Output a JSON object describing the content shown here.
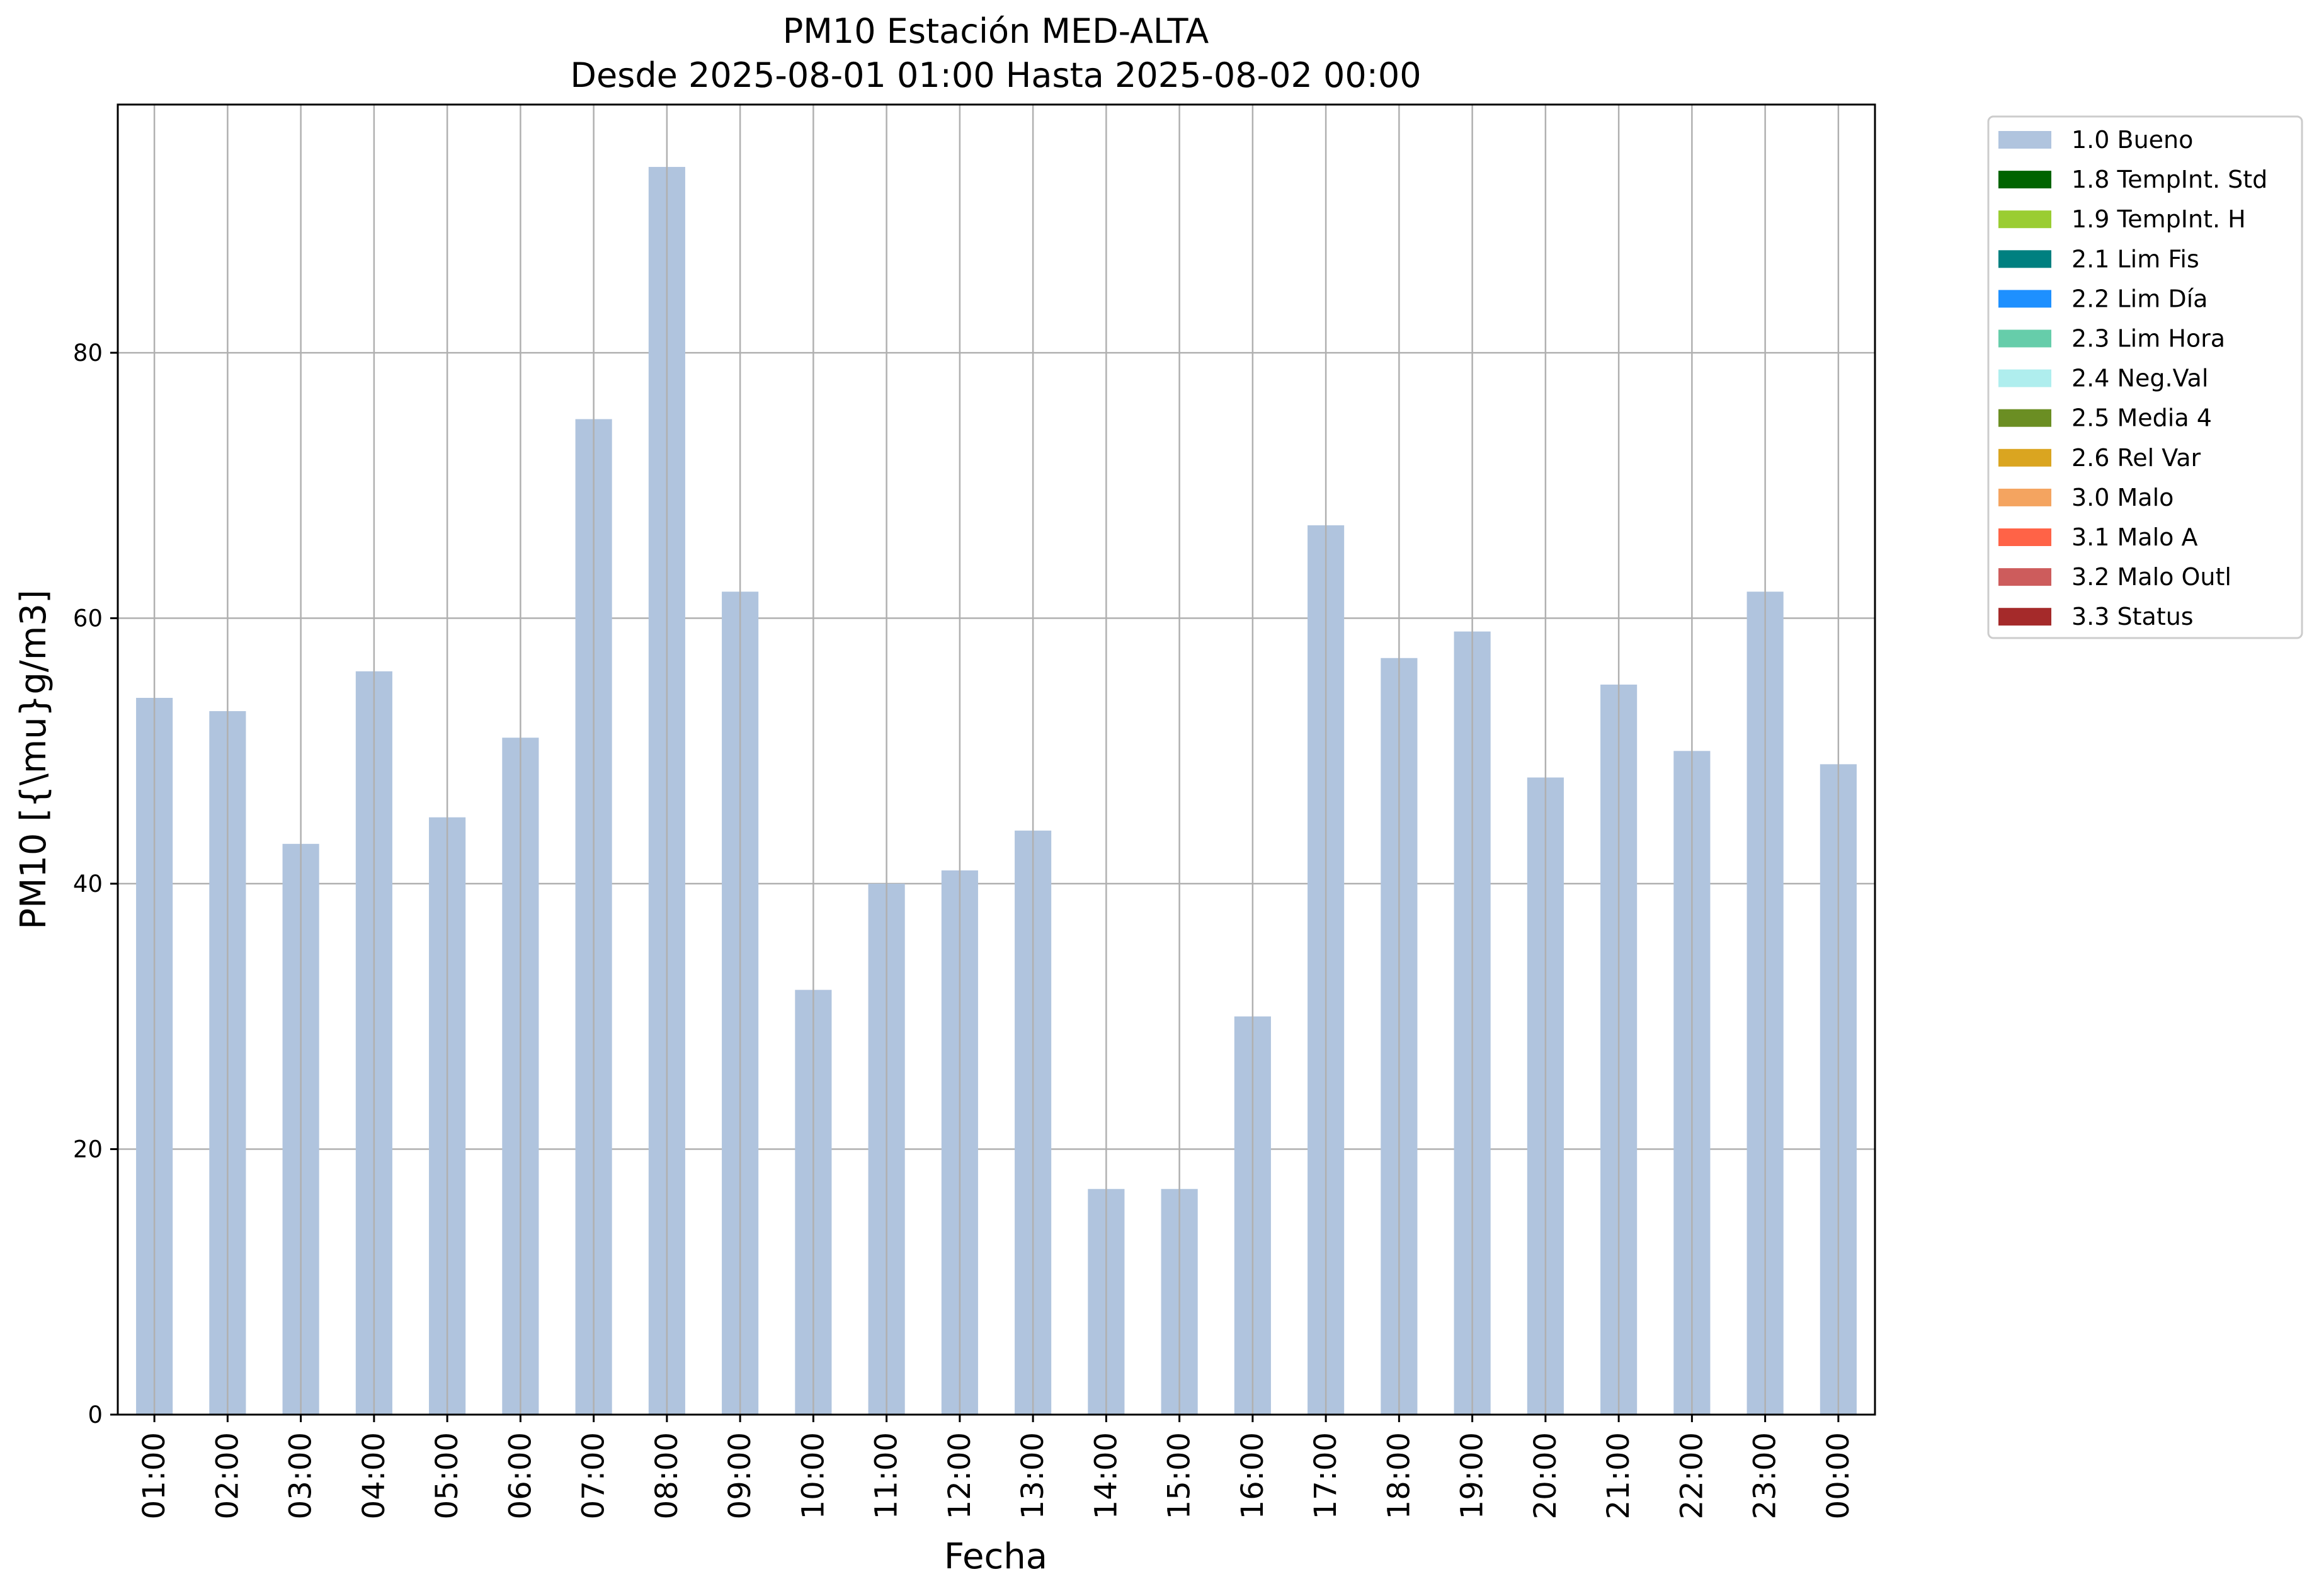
{
  "chart_data": {
    "type": "bar",
    "title": "PM10 Estación MED-ALTA",
    "subtitle": "Desde 2025-08-01 01:00 Hasta 2025-08-02 00:00",
    "xlabel": "Fecha",
    "ylabel": "PM10 [{\\mu}g/m3]",
    "categories": [
      "01:00",
      "02:00",
      "03:00",
      "04:00",
      "05:00",
      "06:00",
      "07:00",
      "08:00",
      "09:00",
      "10:00",
      "11:00",
      "12:00",
      "13:00",
      "14:00",
      "15:00",
      "16:00",
      "17:00",
      "18:00",
      "19:00",
      "20:00",
      "21:00",
      "22:00",
      "23:00",
      "00:00"
    ],
    "series": [
      {
        "name": "1.0 Bueno",
        "color": "#b0c4de",
        "values": [
          54,
          53,
          43,
          56,
          45,
          51,
          75,
          94,
          62,
          32,
          40,
          41,
          44,
          17,
          17,
          30,
          67,
          57,
          59,
          48,
          55,
          50,
          62,
          49
        ]
      }
    ],
    "ylim": [
      0,
      98.7
    ],
    "yticks": [
      0,
      20,
      40,
      60,
      80
    ],
    "grid": true,
    "legend_position": "outside-top-right",
    "legend": [
      {
        "label": "1.0 Bueno",
        "color": "#b0c4de"
      },
      {
        "label": "1.8 TempInt. Std",
        "color": "#006400"
      },
      {
        "label": "1.9 TempInt. H",
        "color": "#9acd32"
      },
      {
        "label": "2.1 Lim Fis",
        "color": "#008080"
      },
      {
        "label": "2.2 Lim Día",
        "color": "#1e90ff"
      },
      {
        "label": "2.3 Lim Hora",
        "color": "#66cdaa"
      },
      {
        "label": "2.4 Neg.Val",
        "color": "#afeeee"
      },
      {
        "label": "2.5 Media 4",
        "color": "#6b8e23"
      },
      {
        "label": "2.6 Rel Var",
        "color": "#daa520"
      },
      {
        "label": "3.0 Malo",
        "color": "#f4a460"
      },
      {
        "label": "3.1 Malo A",
        "color": "#ff6347"
      },
      {
        "label": "3.2 Malo Outl",
        "color": "#cd5c5c"
      },
      {
        "label": "3.3 Status",
        "color": "#a52a2a"
      }
    ]
  }
}
